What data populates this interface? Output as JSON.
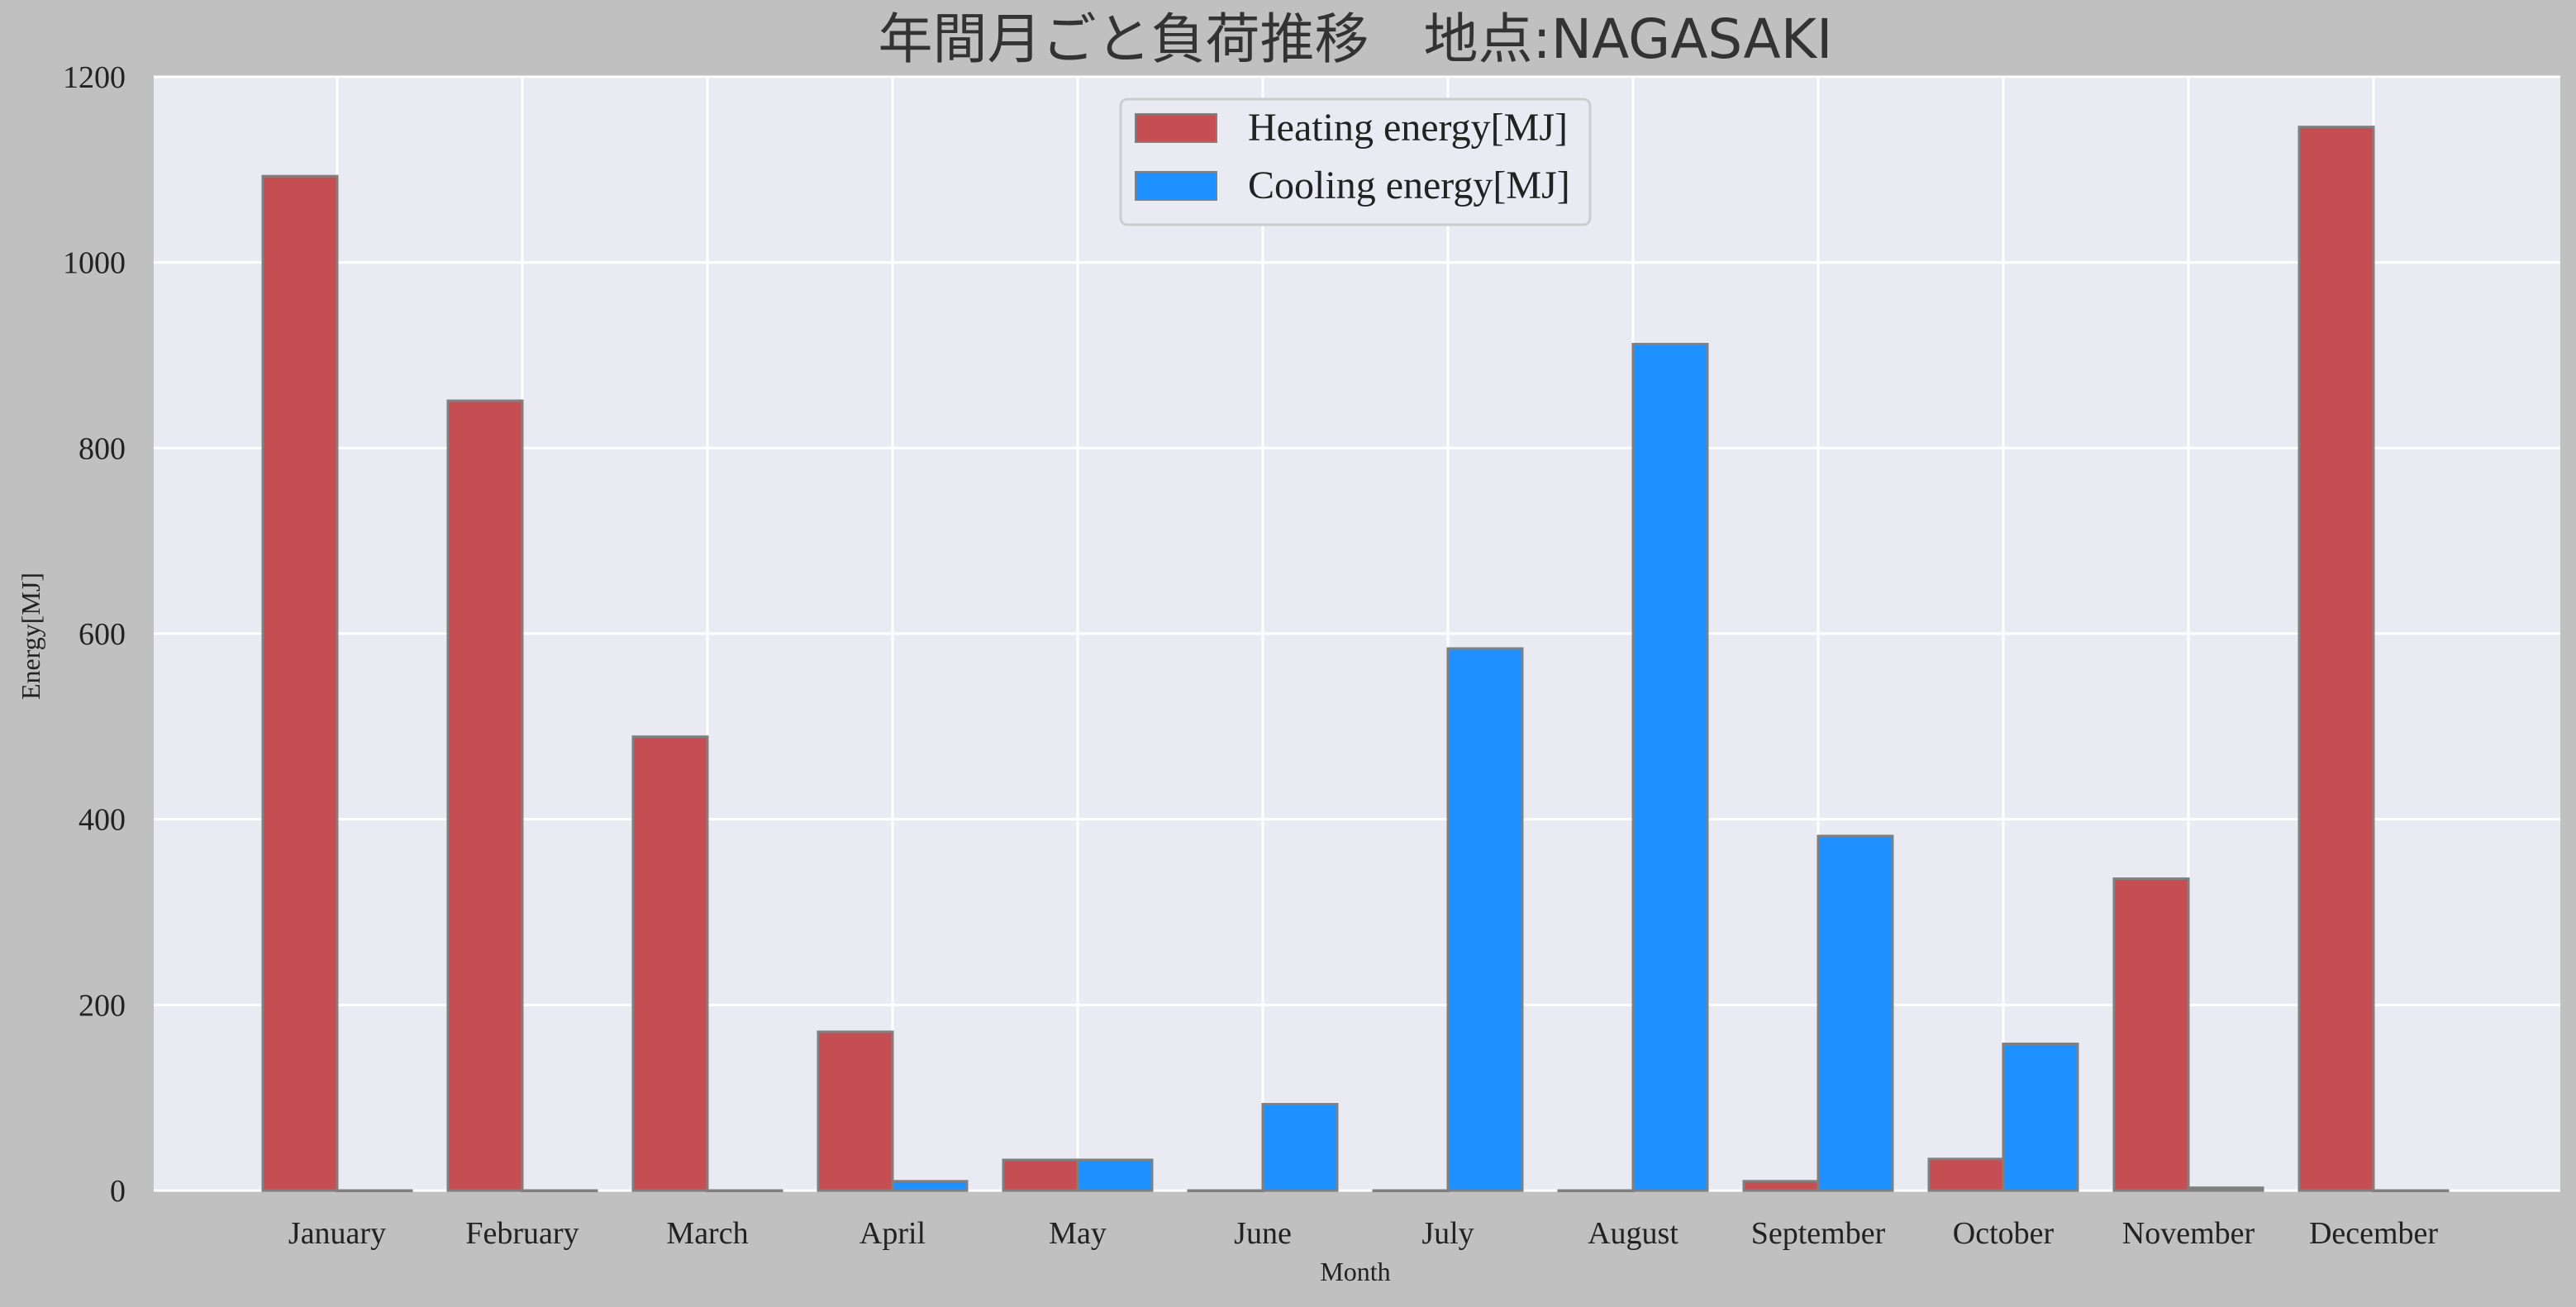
{
  "chart_data": {
    "type": "bar",
    "title": "年間月ごと負荷推移　地点:NAGASAKI",
    "xlabel": "Month",
    "ylabel": "Energy[MJ]",
    "categories": [
      "January",
      "February",
      "March",
      "April",
      "May",
      "June",
      "July",
      "August",
      "September",
      "October",
      "November",
      "December"
    ],
    "series": [
      {
        "name": "Heating energy[MJ]",
        "color": "#c44e52",
        "values": [
          1093,
          851,
          489,
          171,
          33,
          0,
          0,
          0,
          10,
          34,
          336,
          1146
        ]
      },
      {
        "name": "Cooling energy[MJ]",
        "color": "#1e90ff",
        "values": [
          0,
          0,
          0,
          10,
          33,
          93,
          584,
          912,
          382,
          158,
          3,
          0
        ]
      }
    ],
    "ylim": [
      0,
      1200
    ],
    "yticks": [
      0,
      200,
      400,
      600,
      800,
      1000,
      1200
    ],
    "grid": true,
    "legend_position": "top-center",
    "plot_background": "#eaeaf2",
    "page_background": "#c0c0c0"
  }
}
